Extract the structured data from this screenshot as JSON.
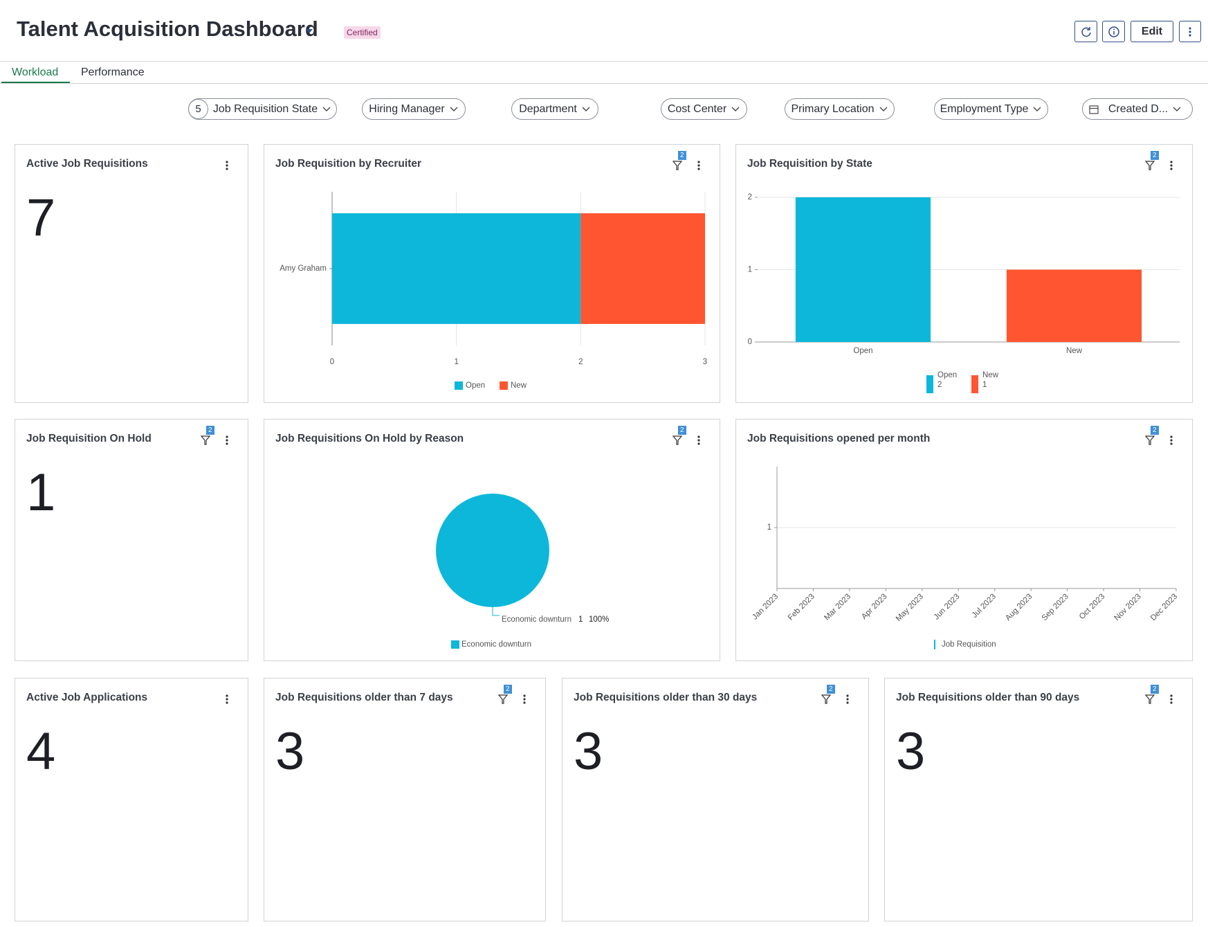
{
  "header": {
    "title": "Talent Acquisition Dashboard",
    "badge": "Certified",
    "edit_button": "Edit"
  },
  "tabs": [
    "Workload",
    "Performance"
  ],
  "filters": [
    {
      "label": "Job Requisition State",
      "count": 5
    },
    {
      "label": "Hiring Manager"
    },
    {
      "label": "Department"
    },
    {
      "label": "Cost Center"
    },
    {
      "label": "Primary Location"
    },
    {
      "label": "Employment Type"
    },
    {
      "label": "Created D..."
    }
  ],
  "kpis": [
    {
      "title": "Active Job Requisitions",
      "value": 7
    },
    {
      "title": "Job Requisition On Hold",
      "value": 1,
      "filter_count": 2
    },
    {
      "title": "Active Job Applications",
      "value": 4
    },
    {
      "title": "Job Requisitions older than 7 days",
      "value": 3,
      "filter_count": 2
    },
    {
      "title": "Job Requisitions older than 30 days",
      "value": 3,
      "filter_count": 2
    },
    {
      "title": "Job Requisitions older than 90 days",
      "value": 3,
      "filter_count": 2
    }
  ],
  "chart_data": [
    {
      "type": "bar",
      "orientation": "horizontal",
      "stacked": true,
      "title": "Job Requisition by Recruiter",
      "filter_count": 2,
      "categories": [
        "Amy Graham"
      ],
      "series": [
        {
          "name": "Open",
          "color": "#0cb7da",
          "values": [
            2
          ]
        },
        {
          "name": "New",
          "color": "#ff5530",
          "values": [
            1
          ]
        }
      ],
      "xlim": [
        0,
        3
      ],
      "xticks": [
        0,
        1,
        2,
        3
      ],
      "grid": true
    },
    {
      "type": "bar",
      "orientation": "vertical",
      "title": "Job Requisition by State",
      "filter_count": 2,
      "categories": [
        "Open",
        "New"
      ],
      "values": [
        2,
        1
      ],
      "colors": [
        "#0cb7da",
        "#ff5530"
      ],
      "ylim": [
        0,
        2
      ],
      "yticks": [
        0,
        1,
        2
      ],
      "grid": true
    },
    {
      "type": "pie",
      "title": "Job Requisitions On Hold by Reason",
      "filter_count": 2,
      "categories": [
        "Economic downturn"
      ],
      "values": [
        1
      ],
      "percent_labels": [
        "100%"
      ],
      "colors": [
        "#0cb7da"
      ]
    },
    {
      "type": "line",
      "title": "Job Requisitions opened per month",
      "filter_count": 2,
      "categories": [
        "Jan 2023",
        "Feb 2023",
        "Mar 2023",
        "Apr 2023",
        "May 2023",
        "Jun 2023",
        "Jul 2023",
        "Aug 2023",
        "Sep 2023",
        "Oct 2023",
        "Nov 2023",
        "Dec 2023"
      ],
      "series": [
        {
          "name": "Job Requisition",
          "color": "#0cb7da",
          "values": [
            null,
            null,
            null,
            null,
            null,
            null,
            null,
            null,
            null,
            null,
            null,
            null
          ]
        }
      ],
      "ylim": [
        0,
        2
      ],
      "yticks": [
        1
      ],
      "grid": true
    }
  ]
}
